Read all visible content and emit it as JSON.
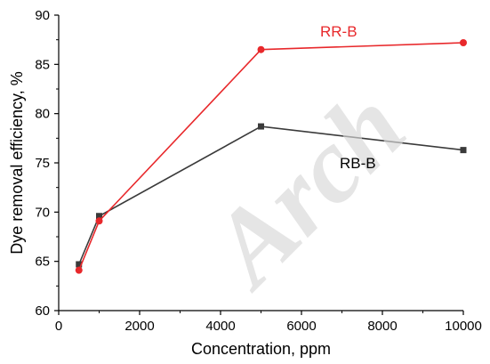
{
  "watermark": "Arch",
  "chart_data": {
    "type": "line",
    "title": "",
    "xlabel": "Concentration, ppm",
    "ylabel": "Dye removal efficiency, %",
    "xlim": [
      0,
      10000
    ],
    "ylim": [
      60,
      90
    ],
    "xticks": [
      0,
      2000,
      4000,
      6000,
      8000,
      10000
    ],
    "yticks": [
      60,
      65,
      70,
      75,
      80,
      85,
      90
    ],
    "grid": false,
    "legend": "none",
    "series": [
      {
        "name": "RR-B",
        "color": "#e8282b",
        "marker": "circle",
        "x": [
          500,
          1000,
          5000,
          10000
        ],
        "y": [
          64.1,
          69.1,
          86.5,
          87.2
        ]
      },
      {
        "name": "RB-B",
        "color": "#3a3a3a",
        "marker": "square",
        "x": [
          500,
          1000,
          5000,
          10000
        ],
        "y": [
          64.7,
          69.6,
          78.7,
          76.3
        ]
      }
    ]
  }
}
